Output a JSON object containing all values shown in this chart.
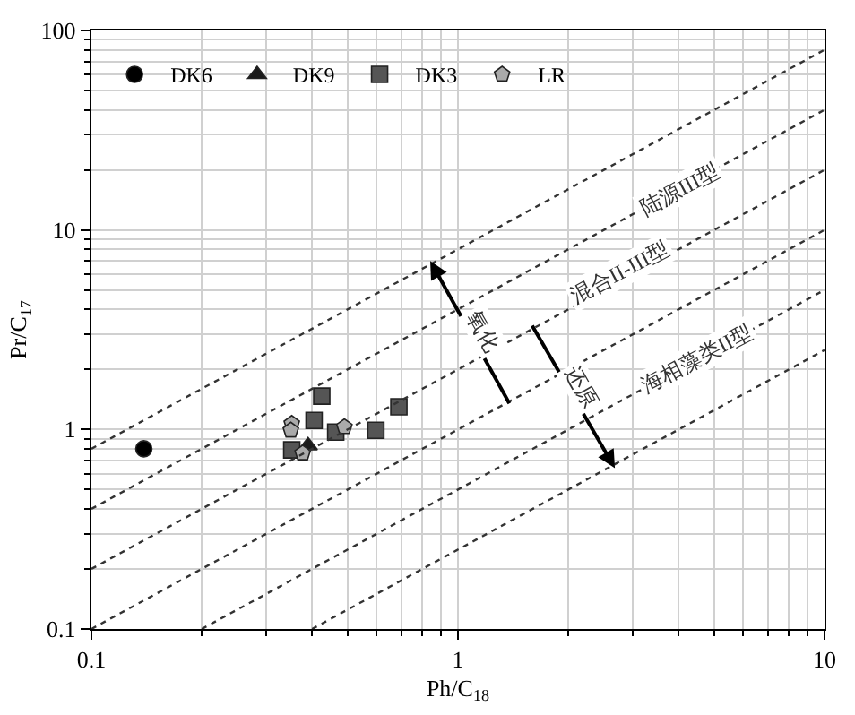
{
  "chart_data": {
    "type": "scatter",
    "xlabel": "Ph/C$_{18}$",
    "ylabel": "Pr/C$_{17}$",
    "log": "xy",
    "xlim": [
      0.1,
      10
    ],
    "ylim": [
      0.1,
      100
    ],
    "xticks": [
      0.1,
      1,
      10
    ],
    "yticks": [
      0.1,
      1,
      10,
      100
    ],
    "grid": true,
    "legend": "top left",
    "series": [
      {
        "name": "DK6",
        "color": "#000000",
        "marker": "circle",
        "x": [
          0.139
        ],
        "values": [
          0.8
        ]
      },
      {
        "name": "DK9",
        "color": "#1a1a1a",
        "marker": "triangle",
        "x": [
          0.39
        ],
        "values": [
          0.83
        ]
      },
      {
        "name": "DK3",
        "color": "#555555",
        "marker": "square",
        "x": [
          0.425,
          0.405,
          0.352,
          0.464,
          0.597,
          0.69
        ],
        "values": [
          1.47,
          1.11,
          0.79,
          0.97,
          0.99,
          1.3
        ]
      },
      {
        "name": "LR",
        "color": "#aaaaaa",
        "x": [
          0.352,
          0.35,
          0.377,
          0.49
        ],
        "values": [
          1.07,
          0.99,
          0.76,
          1.03
        ]
      },
      {
        "type": "line",
        "color": "#333333",
        "line_style": "dotted",
        "marker": "none",
        "x": [
          0.1,
          10
        ],
        "values": [
          0.8,
          80
        ]
      },
      {
        "type": "line",
        "color": "#333333",
        "line_style": "dotted",
        "marker": "none",
        "x": [
          0.1,
          10
        ],
        "values": [
          0.4,
          40
        ]
      },
      {
        "type": "line",
        "color": "#333333",
        "line_style": "dotted",
        "marker": "none",
        "x": [
          0.1,
          10
        ],
        "values": [
          0.2,
          20
        ]
      },
      {
        "type": "line",
        "color": "#333333",
        "line_style": "dotted",
        "marker": "none",
        "x": [
          0.1,
          10
        ],
        "values": [
          0.1,
          10
        ]
      },
      {
        "type": "line",
        "color": "#333333",
        "line_style": "dotted",
        "marker": "none",
        "x": [
          0.2,
          10
        ],
        "values": [
          0.1,
          5
        ]
      },
      {
        "type": "line",
        "color": "#333333",
        "line_style": "dotted",
        "marker": "none",
        "x": [
          0.4,
          10
        ],
        "values": [
          0.1,
          2.5
        ]
      }
    ],
    "annotations": [
      {
        "text": "陆源III型",
        "x": 4.0,
        "y": 16
      },
      "混合II-III型",
      {
        "text": "海相藻类II型",
        "x": 4.5,
        "y": 2.25
      },
      {
        "text": "氧化",
        "x": 0.84,
        "y": 7.0
      },
      {
        "text": "还原",
        "x": 2.68,
        "y": 0.64
      }
    ]
  }
}
